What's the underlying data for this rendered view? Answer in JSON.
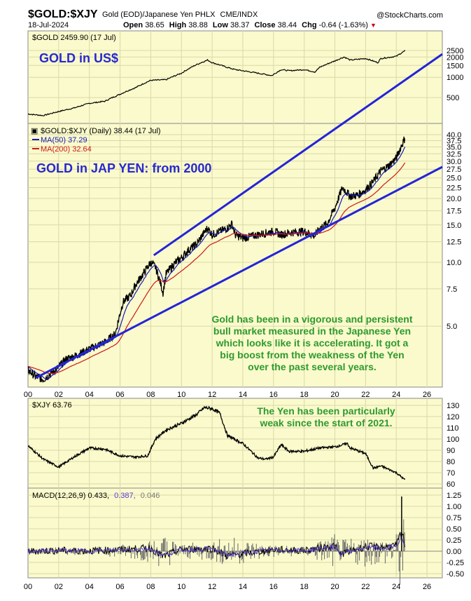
{
  "header": {
    "symbol": "$GOLD:$XJY",
    "description": "Gold (EOD)/Japanese Yen PHLX",
    "exchange": "CME/INDX",
    "brand": "@StockCharts.com",
    "date": "18-Jul-2024",
    "open_label": "Open",
    "open": "38.65",
    "high_label": "High",
    "high": "38.88",
    "low_label": "Low",
    "low": "38.37",
    "close_label": "Close",
    "close": "38.44",
    "chg_label": "Chg",
    "chg": "-0.64 (-1.63%)",
    "down_arrow": "▼"
  },
  "colors": {
    "pane_bg": "#fafacc",
    "price": "#000000",
    "ma50": "#1a1ab8",
    "ma200": "#d01818",
    "channel": "#2424d8",
    "annotation": "#2e9a2e",
    "headline": "#2828d0"
  },
  "chart_data": [
    {
      "type": "line",
      "pane": "gold-usd",
      "legend": "$GOLD 2459.90 (17 Jul)",
      "headline": "GOLD in US$",
      "y_scale": "log",
      "y_ticks": [
        "2500",
        "2000",
        "1500",
        "1000",
        "500"
      ],
      "x": [
        2000,
        2001,
        2002,
        2003,
        2004,
        2005,
        2006,
        2007,
        2008,
        2009,
        2010,
        2011,
        2011.7,
        2012,
        2013,
        2013.5,
        2014,
        2015,
        2015.9,
        2016.5,
        2017,
        2018,
        2018.7,
        2019,
        2020,
        2020.6,
        2021,
        2022,
        2022.8,
        2023,
        2024,
        2024.55
      ],
      "values": [
        285,
        270,
        310,
        350,
        410,
        440,
        560,
        700,
        900,
        920,
        1150,
        1550,
        1800,
        1650,
        1400,
        1300,
        1250,
        1150,
        1060,
        1300,
        1250,
        1300,
        1200,
        1400,
        1750,
        2000,
        1800,
        1900,
        1650,
        1900,
        2050,
        2460
      ]
    },
    {
      "type": "line",
      "pane": "gold-jpy",
      "legend": "$GOLD:$XJY (Daily) 38.44 (17 Jul)",
      "legend_symbol": "▣",
      "ma50_label": "MA(50) 37.29",
      "ma200_label": "MA(200) 32.64",
      "headline": "GOLD in JAP YEN: from 2000",
      "annotation": [
        "Gold has been in a vigorous and persistent",
        "bull market measured in the Japanese Yen",
        "which looks like it is accelerating. It got a",
        "big boost from the weakness of the Yen",
        "over the past several years."
      ],
      "y_scale": "log",
      "y_ticks": [
        "40.0",
        "37.5",
        "35.0",
        "32.5",
        "30.0",
        "27.5",
        "25.0",
        "22.5",
        "20.0",
        "17.5",
        "15.0",
        "12.5",
        "10.0",
        "7.5",
        "5.0"
      ],
      "x_ticks": [
        "00",
        "02",
        "04",
        "06",
        "08",
        "10",
        "12",
        "14",
        "16",
        "18",
        "20",
        "22",
        "24",
        "26"
      ],
      "x": [
        2000,
        2000.5,
        2001,
        2001.5,
        2002,
        2002.5,
        2003,
        2004,
        2005,
        2005.7,
        2006.2,
        2006.7,
        2007,
        2007.5,
        2008,
        2008.3,
        2008.8,
        2009,
        2009.5,
        2010,
        2010.5,
        2011,
        2011.7,
        2012,
        2012.5,
        2013,
        2013.3,
        2013.5,
        2014,
        2015,
        2016,
        2016.5,
        2017,
        2018,
        2018.7,
        2019,
        2019.5,
        2020,
        2020.5,
        2021,
        2021.5,
        2022,
        2022.5,
        2023,
        2023.5,
        2024,
        2024.3,
        2024.55
      ],
      "values": [
        3.1,
        2.9,
        2.8,
        3.0,
        3.2,
        3.5,
        3.6,
        3.9,
        4.2,
        4.6,
        6.5,
        7.0,
        7.8,
        8.8,
        10.0,
        9.5,
        7.2,
        8.8,
        9.8,
        10.5,
        11.5,
        12.2,
        14.5,
        13.5,
        14.0,
        14.5,
        15.2,
        13.5,
        13.0,
        13.5,
        14.0,
        13.5,
        13.8,
        14.0,
        13.3,
        14.5,
        15.2,
        18.0,
        22.5,
        20.5,
        20.8,
        22.0,
        24.0,
        27.0,
        28.5,
        31.0,
        35.0,
        38.44
      ]
    },
    {
      "type": "line",
      "pane": "xjy",
      "legend": "$XJY 63.76",
      "annotation": [
        "The Yen has been particularly",
        "weak since the start of 2021."
      ],
      "y_ticks": [
        "130",
        "120",
        "110",
        "100",
        "90",
        "80",
        "70",
        "60"
      ],
      "x": [
        2000,
        2001,
        2002,
        2003,
        2004,
        2005,
        2006,
        2007,
        2007.8,
        2008.3,
        2009,
        2010,
        2011,
        2011.5,
        2012,
        2012.5,
        2013,
        2014,
        2015,
        2015.5,
        2016,
        2016.5,
        2017,
        2018,
        2019,
        2020,
        2020.8,
        2021,
        2022,
        2022.5,
        2023,
        2024,
        2024.55
      ],
      "values": [
        94,
        82,
        75,
        84,
        92,
        91,
        85,
        84,
        85,
        100,
        108,
        114,
        122,
        128,
        127,
        123,
        103,
        96,
        83,
        82,
        84,
        95,
        89,
        89,
        92,
        93,
        96,
        92,
        87,
        74,
        76,
        70,
        63.76
      ]
    },
    {
      "type": "bar",
      "pane": "macd",
      "legend": "MACD(12,26,9) 0.433,",
      "signal_value": "0.387,",
      "hist_value": "0.046",
      "y_ticks": [
        "1.25",
        "1.00",
        "0.75",
        "0.50",
        "0.25",
        "0.00",
        "-0.25",
        "-0.50"
      ],
      "x_ticks": [
        "00",
        "02",
        "04",
        "06",
        "08",
        "10",
        "12",
        "14",
        "16",
        "18",
        "20",
        "22",
        "24",
        "26"
      ],
      "x": [
        2000,
        2002,
        2004,
        2006,
        2008,
        2008.8,
        2010,
        2012,
        2013,
        2016,
        2018,
        2020,
        2020.3,
        2022,
        2023,
        2024,
        2024.35,
        2024.55
      ],
      "values": [
        0.0,
        0.05,
        0.02,
        0.1,
        0.2,
        -0.35,
        0.12,
        0.18,
        -0.3,
        0.1,
        0.05,
        0.35,
        -0.2,
        0.3,
        0.25,
        0.35,
        1.2,
        0.43
      ]
    }
  ]
}
